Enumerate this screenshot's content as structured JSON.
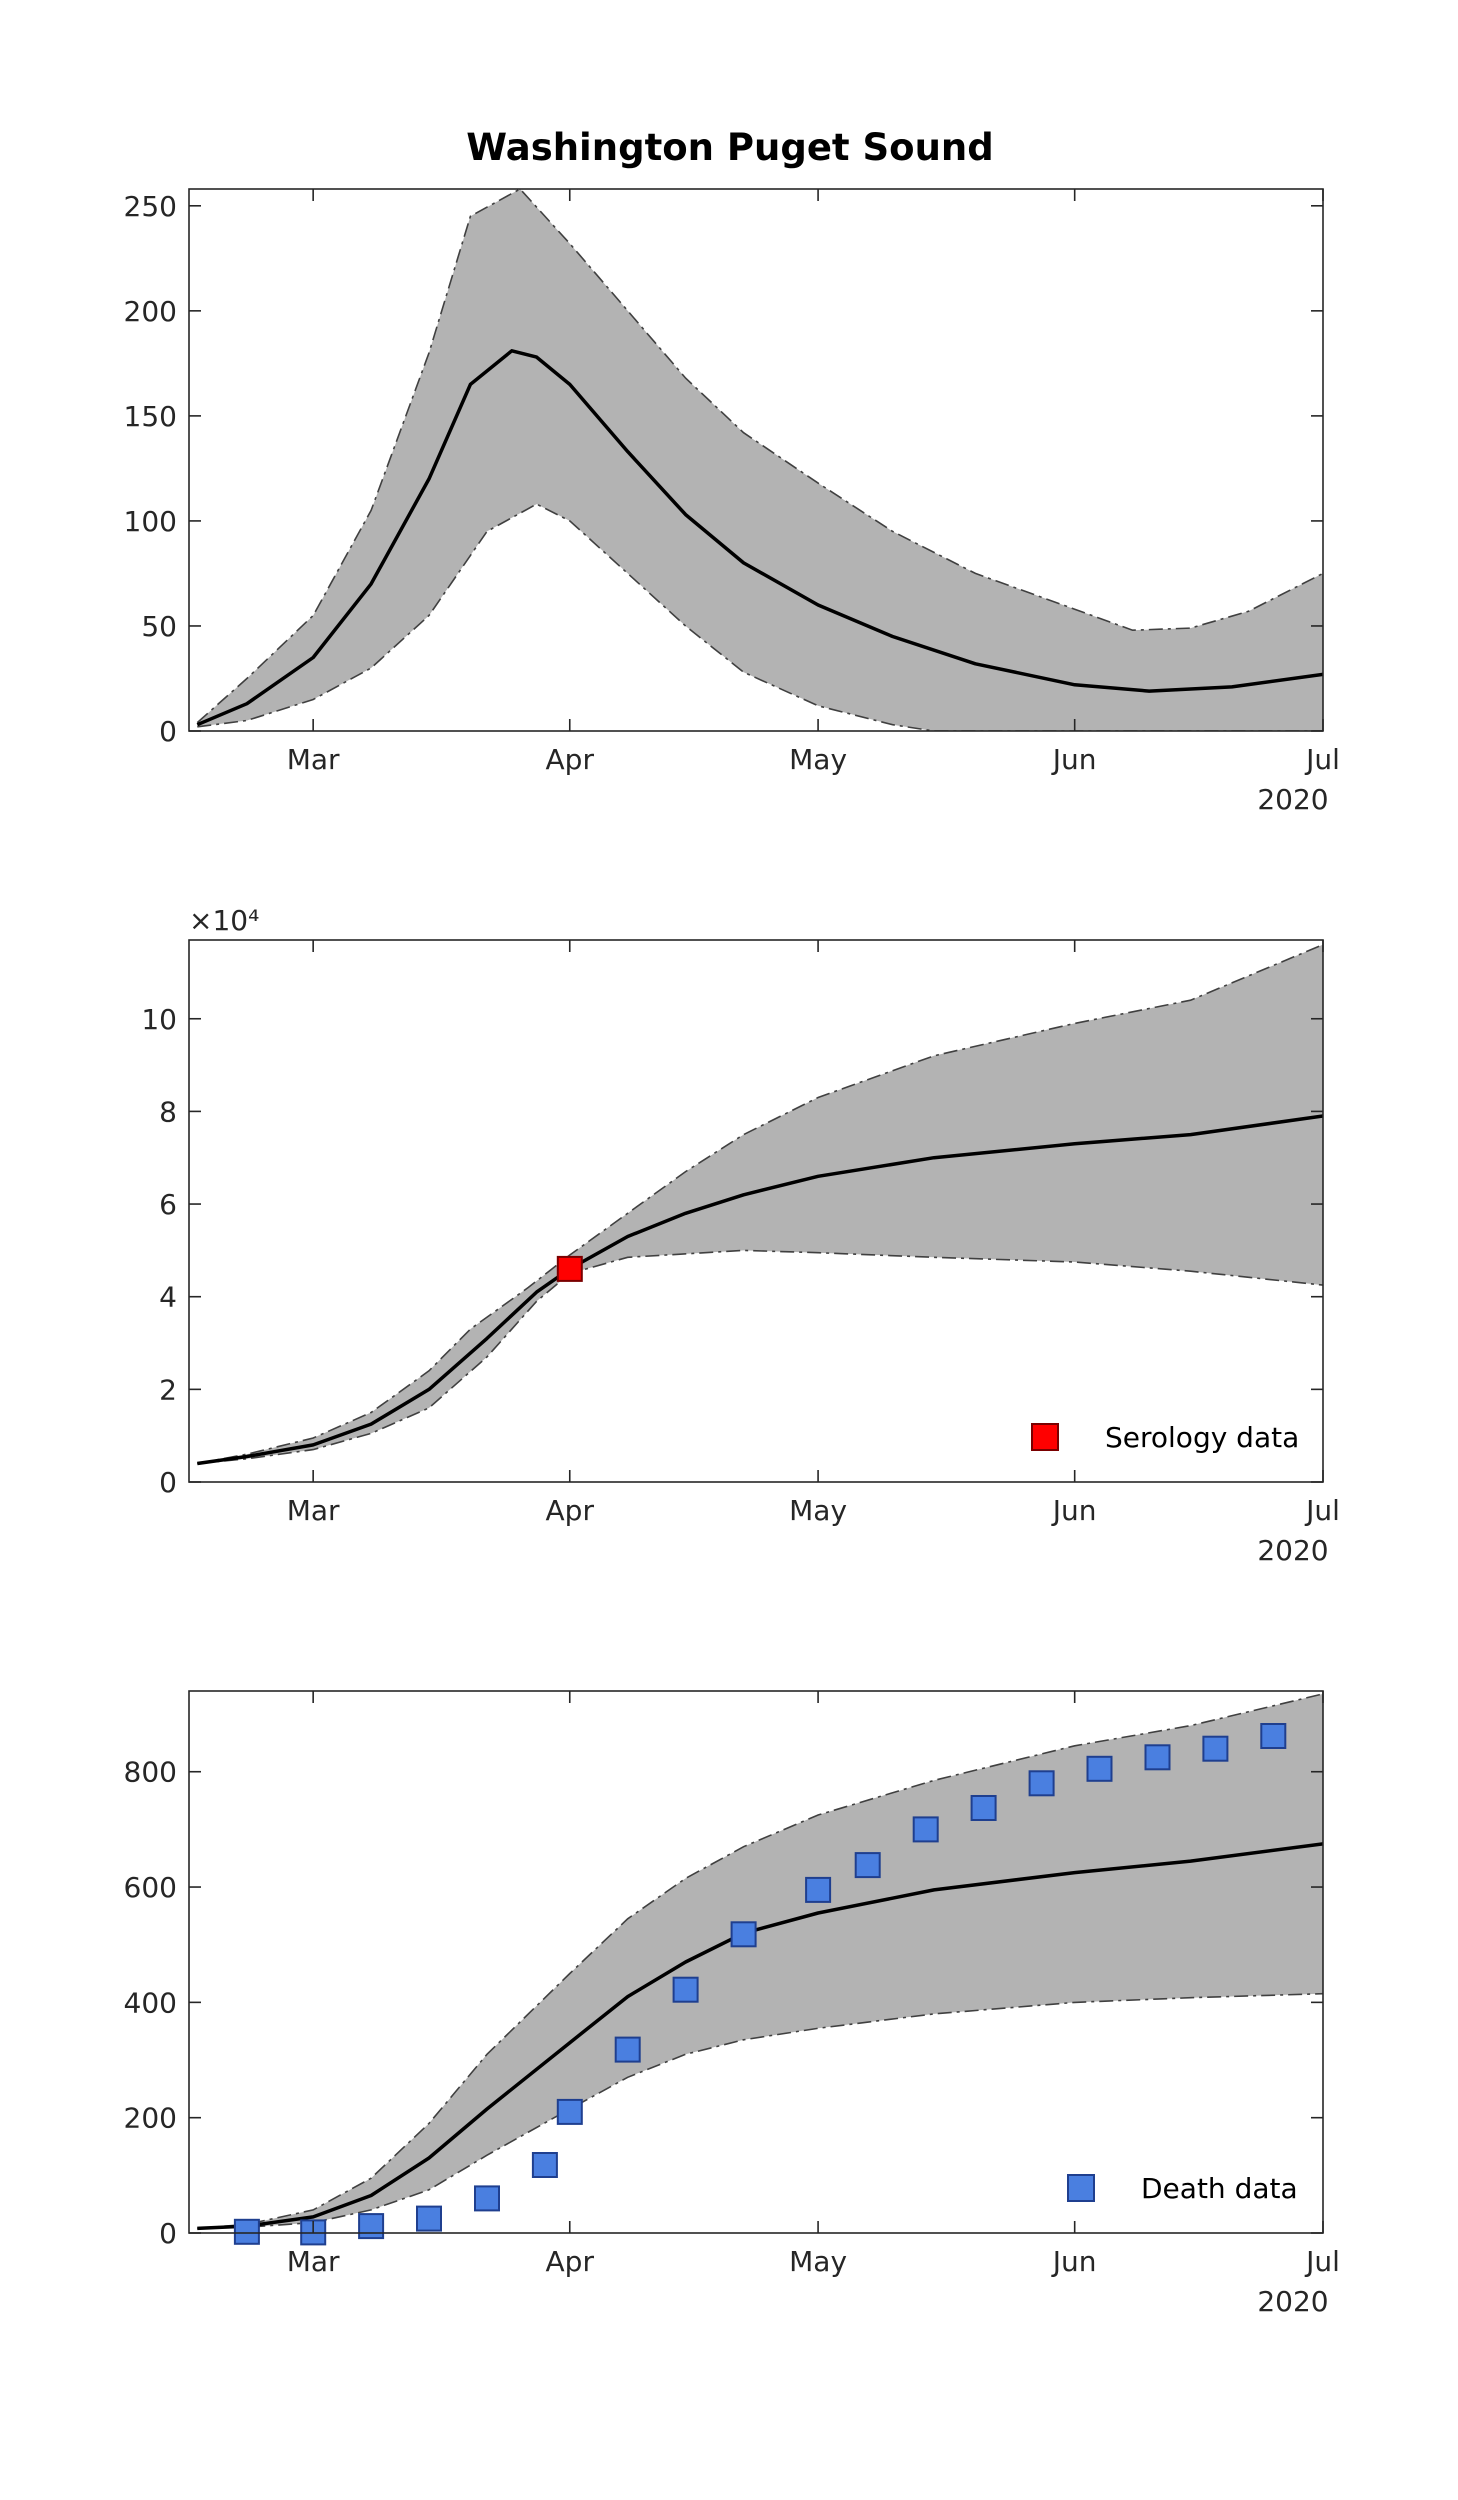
{
  "figure": {
    "title": "Washington Puget Sound",
    "band_color": "#b3b3b3",
    "line_color": "#000000"
  },
  "chart_data": [
    {
      "type": "line",
      "title": "Washington Puget Sound",
      "x_axis": {
        "range": [
          "2020-02-15",
          "2020-07-01"
        ],
        "ticks": [
          {
            "date": "2020-03-01",
            "label": "Mar"
          },
          {
            "date": "2020-04-01",
            "label": "Apr"
          },
          {
            "date": "2020-05-01",
            "label": "May"
          },
          {
            "date": "2020-06-01",
            "label": "Jun"
          },
          {
            "date": "2020-07-01",
            "label": "Jul"
          }
        ],
        "year_label": "2020"
      },
      "y_axis": {
        "range": [
          0,
          258
        ],
        "ticks": [
          0,
          50,
          100,
          150,
          200,
          250
        ],
        "exponent_label": ""
      },
      "grid": false,
      "median": [
        [
          "2020-02-16",
          3
        ],
        [
          "2020-02-22",
          13
        ],
        [
          "2020-03-01",
          35
        ],
        [
          "2020-03-08",
          70
        ],
        [
          "2020-03-15",
          120
        ],
        [
          "2020-03-20",
          165
        ],
        [
          "2020-03-25",
          181
        ],
        [
          "2020-03-28",
          178
        ],
        [
          "2020-04-01",
          165
        ],
        [
          "2020-04-08",
          133
        ],
        [
          "2020-04-15",
          103
        ],
        [
          "2020-04-22",
          80
        ],
        [
          "2020-05-01",
          60
        ],
        [
          "2020-05-10",
          45
        ],
        [
          "2020-05-20",
          32
        ],
        [
          "2020-06-01",
          22
        ],
        [
          "2020-06-10",
          19
        ],
        [
          "2020-06-20",
          21
        ],
        [
          "2020-07-01",
          27
        ]
      ],
      "upper": [
        [
          "2020-02-16",
          4
        ],
        [
          "2020-02-22",
          25
        ],
        [
          "2020-03-01",
          55
        ],
        [
          "2020-03-08",
          105
        ],
        [
          "2020-03-15",
          180
        ],
        [
          "2020-03-20",
          245
        ],
        [
          "2020-03-26",
          258
        ],
        [
          "2020-04-01",
          232
        ],
        [
          "2020-04-08",
          200
        ],
        [
          "2020-04-15",
          168
        ],
        [
          "2020-04-22",
          142
        ],
        [
          "2020-05-01",
          118
        ],
        [
          "2020-05-10",
          95
        ],
        [
          "2020-05-20",
          75
        ],
        [
          "2020-06-01",
          58
        ],
        [
          "2020-06-08",
          48
        ],
        [
          "2020-06-15",
          49
        ],
        [
          "2020-06-22",
          57
        ],
        [
          "2020-07-01",
          75
        ]
      ],
      "lower": [
        [
          "2020-02-16",
          2
        ],
        [
          "2020-02-22",
          5
        ],
        [
          "2020-03-01",
          15
        ],
        [
          "2020-03-08",
          30
        ],
        [
          "2020-03-15",
          55
        ],
        [
          "2020-03-22",
          95
        ],
        [
          "2020-03-28",
          108
        ],
        [
          "2020-04-01",
          100
        ],
        [
          "2020-04-08",
          75
        ],
        [
          "2020-04-15",
          50
        ],
        [
          "2020-04-22",
          28
        ],
        [
          "2020-05-01",
          12
        ],
        [
          "2020-05-10",
          3
        ],
        [
          "2020-05-15",
          0
        ],
        [
          "2020-07-01",
          0
        ]
      ]
    },
    {
      "type": "line",
      "x_axis": {
        "range": [
          "2020-02-15",
          "2020-07-01"
        ],
        "ticks": [
          {
            "date": "2020-03-01",
            "label": "Mar"
          },
          {
            "date": "2020-04-01",
            "label": "Apr"
          },
          {
            "date": "2020-05-01",
            "label": "May"
          },
          {
            "date": "2020-06-01",
            "label": "Jun"
          },
          {
            "date": "2020-07-01",
            "label": "Jul"
          }
        ],
        "year_label": "2020"
      },
      "y_axis": {
        "range": [
          0,
          11.7
        ],
        "ticks": [
          0,
          2,
          4,
          6,
          8,
          10
        ],
        "exponent_label": "×10⁴"
      },
      "grid": false,
      "legend": {
        "position": "bottom-right",
        "entries": [
          {
            "label": "Serology data",
            "color": "#ff0000",
            "marker": "square"
          }
        ]
      },
      "median": [
        [
          "2020-02-16",
          0.4
        ],
        [
          "2020-02-22",
          0.55
        ],
        [
          "2020-03-01",
          0.8
        ],
        [
          "2020-03-08",
          1.25
        ],
        [
          "2020-03-15",
          2.0
        ],
        [
          "2020-03-22",
          3.1
        ],
        [
          "2020-03-28",
          4.1
        ],
        [
          "2020-04-01",
          4.6
        ],
        [
          "2020-04-08",
          5.3
        ],
        [
          "2020-04-15",
          5.8
        ],
        [
          "2020-04-22",
          6.2
        ],
        [
          "2020-05-01",
          6.6
        ],
        [
          "2020-05-15",
          7.0
        ],
        [
          "2020-06-01",
          7.3
        ],
        [
          "2020-06-15",
          7.5
        ],
        [
          "2020-07-01",
          7.9
        ]
      ],
      "upper": [
        [
          "2020-02-16",
          0.4
        ],
        [
          "2020-02-22",
          0.6
        ],
        [
          "2020-03-01",
          0.95
        ],
        [
          "2020-03-08",
          1.5
        ],
        [
          "2020-03-15",
          2.4
        ],
        [
          "2020-03-20",
          3.3
        ],
        [
          "2020-03-27",
          4.2
        ],
        [
          "2020-04-01",
          4.9
        ],
        [
          "2020-04-08",
          5.8
        ],
        [
          "2020-04-15",
          6.7
        ],
        [
          "2020-04-22",
          7.5
        ],
        [
          "2020-05-01",
          8.3
        ],
        [
          "2020-05-15",
          9.2
        ],
        [
          "2020-06-01",
          9.9
        ],
        [
          "2020-06-15",
          10.4
        ],
        [
          "2020-07-01",
          11.6
        ]
      ],
      "lower": [
        [
          "2020-02-16",
          0.4
        ],
        [
          "2020-02-22",
          0.5
        ],
        [
          "2020-03-01",
          0.7
        ],
        [
          "2020-03-08",
          1.05
        ],
        [
          "2020-03-15",
          1.6
        ],
        [
          "2020-03-22",
          2.7
        ],
        [
          "2020-03-28",
          3.9
        ],
        [
          "2020-04-01",
          4.5
        ],
        [
          "2020-04-08",
          4.85
        ],
        [
          "2020-04-22",
          5.0
        ],
        [
          "2020-05-01",
          4.95
        ],
        [
          "2020-05-15",
          4.85
        ],
        [
          "2020-06-01",
          4.75
        ],
        [
          "2020-06-15",
          4.55
        ],
        [
          "2020-07-01",
          4.25
        ]
      ],
      "points": {
        "name": "Serology data",
        "color": "#ff0000",
        "data": [
          [
            "2020-04-01",
            4.6
          ]
        ]
      }
    },
    {
      "type": "line",
      "x_axis": {
        "range": [
          "2020-02-15",
          "2020-07-01"
        ],
        "ticks": [
          {
            "date": "2020-03-01",
            "label": "Mar"
          },
          {
            "date": "2020-04-01",
            "label": "Apr"
          },
          {
            "date": "2020-05-01",
            "label": "May"
          },
          {
            "date": "2020-06-01",
            "label": "Jun"
          },
          {
            "date": "2020-07-01",
            "label": "Jul"
          }
        ],
        "year_label": "2020"
      },
      "y_axis": {
        "range": [
          0,
          940
        ],
        "ticks": [
          0,
          200,
          400,
          600,
          800
        ],
        "exponent_label": ""
      },
      "grid": false,
      "legend": {
        "position": "bottom-right",
        "entries": [
          {
            "label": "Death data",
            "color": "#4a7fe0",
            "marker": "square"
          }
        ]
      },
      "median": [
        [
          "2020-02-16",
          8
        ],
        [
          "2020-02-22",
          12
        ],
        [
          "2020-03-01",
          28
        ],
        [
          "2020-03-08",
          65
        ],
        [
          "2020-03-15",
          130
        ],
        [
          "2020-03-22",
          215
        ],
        [
          "2020-04-01",
          330
        ],
        [
          "2020-04-08",
          410
        ],
        [
          "2020-04-15",
          470
        ],
        [
          "2020-04-22",
          520
        ],
        [
          "2020-05-01",
          555
        ],
        [
          "2020-05-15",
          595
        ],
        [
          "2020-06-01",
          625
        ],
        [
          "2020-06-15",
          645
        ],
        [
          "2020-07-01",
          675
        ]
      ],
      "upper": [
        [
          "2020-02-16",
          8
        ],
        [
          "2020-02-22",
          15
        ],
        [
          "2020-03-01",
          40
        ],
        [
          "2020-03-08",
          95
        ],
        [
          "2020-03-15",
          190
        ],
        [
          "2020-03-22",
          310
        ],
        [
          "2020-04-01",
          450
        ],
        [
          "2020-04-08",
          545
        ],
        [
          "2020-04-15",
          615
        ],
        [
          "2020-04-22",
          670
        ],
        [
          "2020-05-01",
          725
        ],
        [
          "2020-05-15",
          785
        ],
        [
          "2020-06-01",
          845
        ],
        [
          "2020-06-15",
          880
        ],
        [
          "2020-07-01",
          935
        ]
      ],
      "lower": [
        [
          "2020-02-16",
          8
        ],
        [
          "2020-02-22",
          10
        ],
        [
          "2020-03-01",
          18
        ],
        [
          "2020-03-08",
          40
        ],
        [
          "2020-03-15",
          75
        ],
        [
          "2020-03-22",
          135
        ],
        [
          "2020-04-01",
          215
        ],
        [
          "2020-04-08",
          270
        ],
        [
          "2020-04-15",
          310
        ],
        [
          "2020-04-22",
          335
        ],
        [
          "2020-05-01",
          355
        ],
        [
          "2020-05-15",
          380
        ],
        [
          "2020-06-01",
          400
        ],
        [
          "2020-06-15",
          408
        ],
        [
          "2020-07-01",
          415
        ]
      ],
      "points": {
        "name": "Death data",
        "color": "#4a7fe0",
        "data": [
          [
            "2020-02-22",
            2
          ],
          [
            "2020-03-01",
            1
          ],
          [
            "2020-03-08",
            12
          ],
          [
            "2020-03-15",
            25
          ],
          [
            "2020-03-22",
            60
          ],
          [
            "2020-03-29",
            118
          ],
          [
            "2020-04-01",
            210
          ],
          [
            "2020-04-08",
            318
          ],
          [
            "2020-04-15",
            422
          ],
          [
            "2020-04-22",
            518
          ],
          [
            "2020-05-01",
            595
          ],
          [
            "2020-05-07",
            638
          ],
          [
            "2020-05-14",
            700
          ],
          [
            "2020-05-21",
            737
          ],
          [
            "2020-05-28",
            780
          ],
          [
            "2020-06-04",
            805
          ],
          [
            "2020-06-11",
            825
          ],
          [
            "2020-06-18",
            840
          ],
          [
            "2020-06-25",
            862
          ]
        ]
      }
    }
  ]
}
